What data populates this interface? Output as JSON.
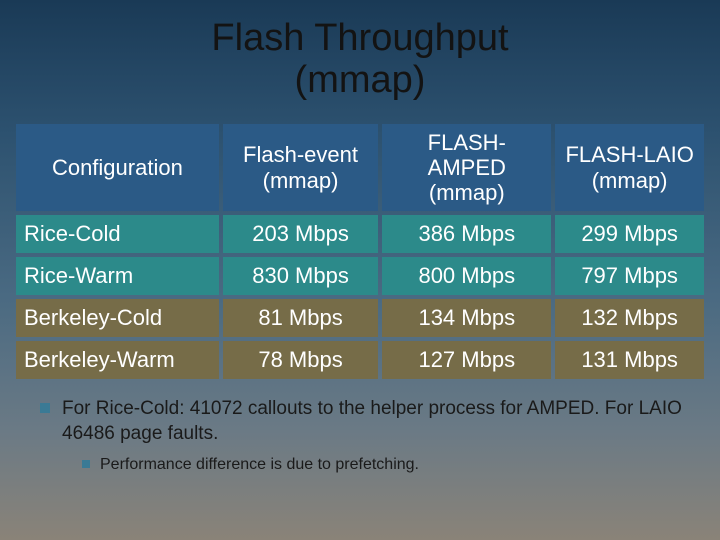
{
  "title_line1": "Flash Throughput",
  "title_line2": "(mmap)",
  "table": {
    "columns": [
      "Configuration",
      "Flash-event (mmap)",
      "FLASH-AMPED (mmap)",
      "FLASH-LAIO (mmap)"
    ],
    "col_headers_2line": [
      {
        "l1": "Configuration",
        "l2": ""
      },
      {
        "l1": "Flash-event",
        "l2": "(mmap)"
      },
      {
        "l1": "FLASH-AMPED",
        "l2": "(mmap)"
      },
      {
        "l1": "FLASH-LAIO",
        "l2": "(mmap)"
      }
    ],
    "rows": [
      {
        "label": "Rice-Cold",
        "values": [
          "203 Mbps",
          "386 Mbps",
          "299 Mbps"
        ],
        "bg": "#2c8a8a"
      },
      {
        "label": "Rice-Warm",
        "values": [
          "830 Mbps",
          "800 Mbps",
          "797 Mbps"
        ],
        "bg": "#2c8a8a"
      },
      {
        "label": "Berkeley-Cold",
        "values": [
          "81 Mbps",
          "134 Mbps",
          "132 Mbps"
        ],
        "bg": "#766c48"
      },
      {
        "label": "Berkeley-Warm",
        "values": [
          "78 Mbps",
          "127 Mbps",
          "131 Mbps"
        ],
        "bg": "#766c48"
      }
    ],
    "header_bg": "#2b5a86",
    "header_color": "#ffffff",
    "cell_color": "#ffffff",
    "fontsize_header": 22,
    "fontsize_cell": 22,
    "col_widths": [
      "30%",
      "23%",
      "25%",
      "22%"
    ]
  },
  "bullets": {
    "level1": "For Rice-Cold: 41072 callouts to the helper process for AMPED. For LAIO 46486 page faults.",
    "level2": "Performance difference is due to prefetching."
  },
  "colors": {
    "bullet_square": "#3a7a95",
    "text": "#1a1a1a"
  }
}
